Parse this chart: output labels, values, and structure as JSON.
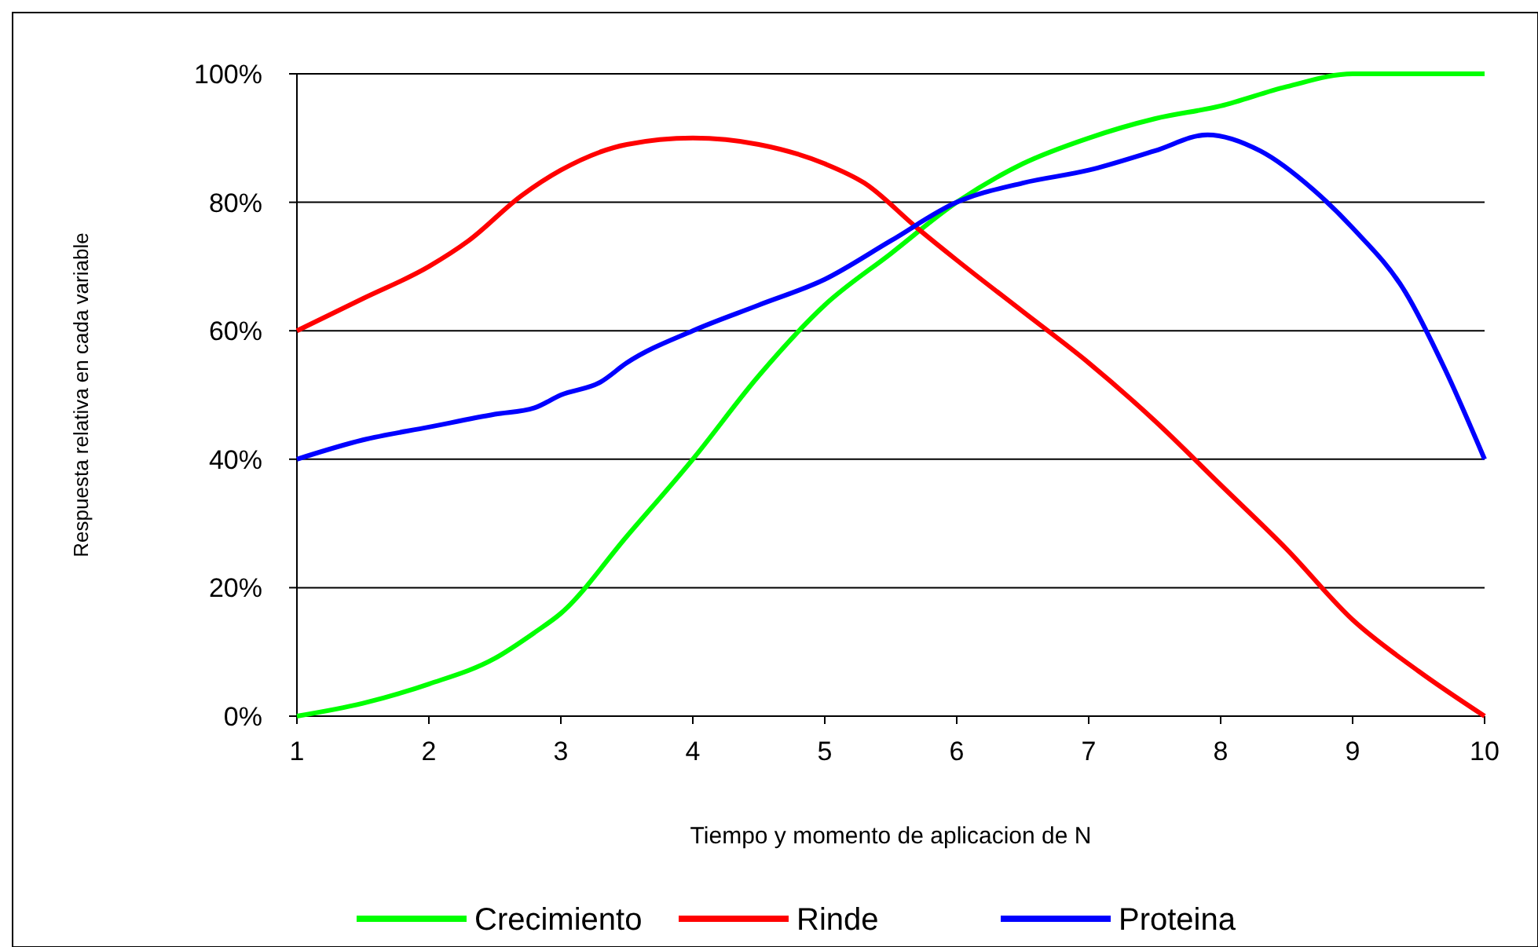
{
  "chart_data": {
    "type": "line",
    "xlabel": "Tiempo y momento de aplicacion de N",
    "ylabel": "Respuesta relativa en cada variable",
    "xlim": [
      1,
      10
    ],
    "xticks": [
      1,
      2,
      3,
      4,
      5,
      6,
      7,
      8,
      9,
      10
    ],
    "ylim": [
      0,
      100
    ],
    "yticks": [
      {
        "value": 0,
        "label": "0%"
      },
      {
        "value": 20,
        "label": "20%"
      },
      {
        "value": 40,
        "label": "40%"
      },
      {
        "value": 60,
        "label": "60%"
      },
      {
        "value": 80,
        "label": "80%"
      },
      {
        "value": 100,
        "label": "100%"
      }
    ],
    "grid": "y",
    "legend": "bottom",
    "marker": "none",
    "line_style": "solid",
    "series": [
      {
        "name": "Crecimiento",
        "color": "#00ff00",
        "x": [
          1,
          1.5,
          2,
          2.5,
          2.8,
          3,
          3.5,
          4,
          4.5,
          5,
          5.5,
          6,
          6.5,
          7,
          7.5,
          8,
          8.5,
          9,
          10
        ],
        "values": [
          0,
          2,
          5,
          9,
          13,
          16,
          28,
          40,
          53,
          64,
          72,
          80,
          86,
          90,
          93,
          95,
          98,
          100,
          100
        ]
      },
      {
        "name": "Rinde",
        "color": "#ff0000",
        "x": [
          1,
          1.5,
          2,
          2.3,
          2.7,
          3,
          3.5,
          4,
          4.5,
          5,
          5.3,
          5.7,
          6,
          6.5,
          7,
          7.5,
          8,
          8.5,
          9,
          9.5,
          10
        ],
        "values": [
          60,
          65,
          70,
          74,
          81,
          85,
          89,
          90,
          89,
          86,
          83,
          76,
          71,
          63,
          55,
          46,
          36,
          26,
          15,
          7,
          0
        ]
      },
      {
        "name": "Proteina",
        "color": "#0000ff",
        "x": [
          1,
          1.5,
          2,
          2.5,
          2.8,
          3,
          3.3,
          3.5,
          4,
          4.5,
          5,
          5.5,
          6,
          6.5,
          7,
          7.5,
          7.9,
          8.3,
          8.7,
          9,
          9.4,
          9.7,
          10
        ],
        "values": [
          40,
          43,
          45,
          47,
          48,
          50,
          52,
          55,
          60,
          64,
          68,
          74,
          80,
          83,
          85,
          88,
          90.5,
          88,
          82,
          76,
          66,
          54,
          40
        ]
      }
    ]
  }
}
